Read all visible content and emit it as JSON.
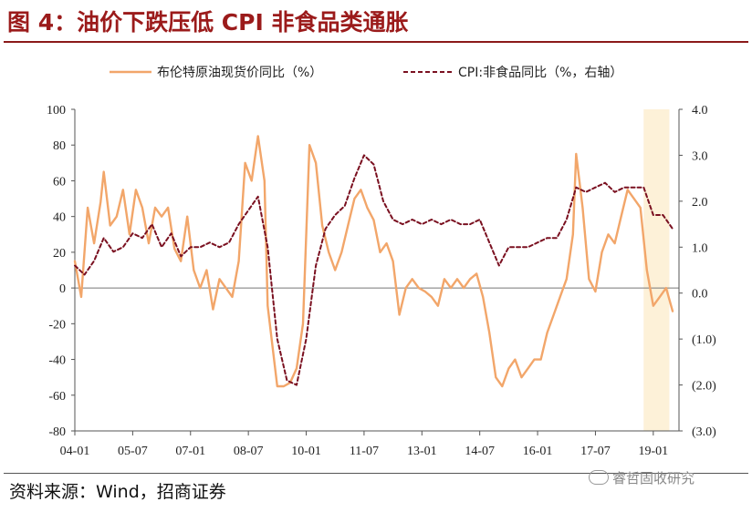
{
  "figure": {
    "title": "图 4：油价下跌压低 CPI 非食品类通胀",
    "source": "资料来源：Wind，招商证券",
    "watermark": "睿哲固收研究"
  },
  "colors": {
    "title": "#9b1b1b",
    "oil": "#f2a66a",
    "cpi": "#7a1020",
    "highlight": "#fdf1d8"
  },
  "chart_data": {
    "type": "line",
    "x_ticks": [
      "04-01",
      "05-07",
      "07-01",
      "08-07",
      "10-01",
      "11-07",
      "13-01",
      "14-07",
      "16-01",
      "17-07",
      "19-01"
    ],
    "y_left": {
      "min": -80,
      "max": 100,
      "step": 20,
      "ticks": [
        "100",
        "80",
        "60",
        "40",
        "20",
        "0",
        "-20",
        "-40",
        "-60",
        "-80"
      ]
    },
    "y_right": {
      "min": -3,
      "max": 4,
      "step": 1,
      "ticks": [
        "4.0",
        "3.0",
        "2.0",
        "1.0",
        "0.0",
        "(1.0)",
        "(2.0)",
        "(3.0)"
      ]
    },
    "highlight_range": [
      "2018-10",
      "2019-06"
    ],
    "legend_position": "top",
    "series": [
      {
        "name": "布伦特原油现货价同比（%）",
        "axis": "left",
        "style": "solid",
        "points": [
          [
            "2004-01",
            15
          ],
          [
            "2004-03",
            -5
          ],
          [
            "2004-05",
            45
          ],
          [
            "2004-07",
            25
          ],
          [
            "2004-09",
            48
          ],
          [
            "2004-10",
            65
          ],
          [
            "2004-12",
            35
          ],
          [
            "2005-02",
            40
          ],
          [
            "2005-04",
            55
          ],
          [
            "2005-06",
            30
          ],
          [
            "2005-08",
            55
          ],
          [
            "2005-10",
            45
          ],
          [
            "2005-12",
            25
          ],
          [
            "2006-02",
            45
          ],
          [
            "2006-04",
            40
          ],
          [
            "2006-06",
            45
          ],
          [
            "2006-08",
            22
          ],
          [
            "2006-10",
            15
          ],
          [
            "2006-12",
            40
          ],
          [
            "2007-02",
            10
          ],
          [
            "2007-04",
            0
          ],
          [
            "2007-06",
            10
          ],
          [
            "2007-08",
            -12
          ],
          [
            "2007-10",
            5
          ],
          [
            "2007-12",
            0
          ],
          [
            "2008-02",
            -5
          ],
          [
            "2008-04",
            15
          ],
          [
            "2008-06",
            70
          ],
          [
            "2008-08",
            60
          ],
          [
            "2008-10",
            85
          ],
          [
            "2008-12",
            60
          ],
          [
            "2009-01",
            -10
          ],
          [
            "2009-03",
            -40
          ],
          [
            "2009-04",
            -55
          ],
          [
            "2009-06",
            -55
          ],
          [
            "2009-08",
            -53
          ],
          [
            "2009-10",
            -45
          ],
          [
            "2009-12",
            -20
          ],
          [
            "2010-02",
            80
          ],
          [
            "2010-04",
            70
          ],
          [
            "2010-06",
            35
          ],
          [
            "2010-08",
            20
          ],
          [
            "2010-10",
            10
          ],
          [
            "2010-12",
            20
          ],
          [
            "2011-02",
            35
          ],
          [
            "2011-04",
            50
          ],
          [
            "2011-06",
            55
          ],
          [
            "2011-08",
            45
          ],
          [
            "2011-10",
            38
          ],
          [
            "2011-12",
            20
          ],
          [
            "2012-02",
            25
          ],
          [
            "2012-04",
            15
          ],
          [
            "2012-06",
            -15
          ],
          [
            "2012-08",
            0
          ],
          [
            "2012-10",
            5
          ],
          [
            "2012-12",
            0
          ],
          [
            "2013-02",
            -2
          ],
          [
            "2013-04",
            -5
          ],
          [
            "2013-06",
            -10
          ],
          [
            "2013-08",
            5
          ],
          [
            "2013-10",
            0
          ],
          [
            "2013-12",
            5
          ],
          [
            "2014-02",
            0
          ],
          [
            "2014-04",
            5
          ],
          [
            "2014-06",
            8
          ],
          [
            "2014-08",
            -5
          ],
          [
            "2014-10",
            -25
          ],
          [
            "2014-12",
            -50
          ],
          [
            "2015-02",
            -55
          ],
          [
            "2015-04",
            -45
          ],
          [
            "2015-06",
            -40
          ],
          [
            "2015-08",
            -50
          ],
          [
            "2015-10",
            -45
          ],
          [
            "2015-12",
            -40
          ],
          [
            "2016-02",
            -40
          ],
          [
            "2016-04",
            -25
          ],
          [
            "2016-06",
            -15
          ],
          [
            "2016-08",
            -5
          ],
          [
            "2016-10",
            5
          ],
          [
            "2016-12",
            30
          ],
          [
            "2017-01",
            75
          ],
          [
            "2017-03",
            45
          ],
          [
            "2017-05",
            5
          ],
          [
            "2017-07",
            -2
          ],
          [
            "2017-09",
            20
          ],
          [
            "2017-11",
            30
          ],
          [
            "2018-01",
            25
          ],
          [
            "2018-03",
            40
          ],
          [
            "2018-05",
            55
          ],
          [
            "2018-07",
            50
          ],
          [
            "2018-09",
            45
          ],
          [
            "2018-11",
            10
          ],
          [
            "2019-01",
            -10
          ],
          [
            "2019-03",
            -5
          ],
          [
            "2019-05",
            0
          ],
          [
            "2019-07",
            -13
          ]
        ]
      },
      {
        "name": "CPI:非食品同比（%，右轴）",
        "axis": "right",
        "style": "dashed",
        "points": [
          [
            "2004-01",
            0.6
          ],
          [
            "2004-04",
            0.4
          ],
          [
            "2004-07",
            0.7
          ],
          [
            "2004-10",
            1.2
          ],
          [
            "2005-01",
            0.9
          ],
          [
            "2005-04",
            1.0
          ],
          [
            "2005-07",
            1.3
          ],
          [
            "2005-10",
            1.2
          ],
          [
            "2006-01",
            1.5
          ],
          [
            "2006-04",
            1.0
          ],
          [
            "2006-07",
            1.3
          ],
          [
            "2006-10",
            0.8
          ],
          [
            "2007-01",
            1.0
          ],
          [
            "2007-04",
            1.0
          ],
          [
            "2007-07",
            1.1
          ],
          [
            "2007-10",
            1.0
          ],
          [
            "2008-01",
            1.1
          ],
          [
            "2008-04",
            1.5
          ],
          [
            "2008-07",
            1.8
          ],
          [
            "2008-10",
            2.1
          ],
          [
            "2009-01",
            1.0
          ],
          [
            "2009-04",
            -1.0
          ],
          [
            "2009-07",
            -1.9
          ],
          [
            "2009-10",
            -2.0
          ],
          [
            "2010-01",
            -1.0
          ],
          [
            "2010-04",
            0.6
          ],
          [
            "2010-07",
            1.4
          ],
          [
            "2010-10",
            1.7
          ],
          [
            "2011-01",
            1.9
          ],
          [
            "2011-04",
            2.5
          ],
          [
            "2011-07",
            3.0
          ],
          [
            "2011-10",
            2.8
          ],
          [
            "2012-01",
            2.0
          ],
          [
            "2012-04",
            1.6
          ],
          [
            "2012-07",
            1.5
          ],
          [
            "2012-10",
            1.6
          ],
          [
            "2013-01",
            1.5
          ],
          [
            "2013-04",
            1.6
          ],
          [
            "2013-07",
            1.5
          ],
          [
            "2013-10",
            1.6
          ],
          [
            "2014-01",
            1.5
          ],
          [
            "2014-04",
            1.5
          ],
          [
            "2014-07",
            1.6
          ],
          [
            "2014-10",
            1.1
          ],
          [
            "2015-01",
            0.6
          ],
          [
            "2015-04",
            1.0
          ],
          [
            "2015-07",
            1.0
          ],
          [
            "2015-10",
            1.0
          ],
          [
            "2016-01",
            1.1
          ],
          [
            "2016-04",
            1.2
          ],
          [
            "2016-07",
            1.2
          ],
          [
            "2016-10",
            1.6
          ],
          [
            "2017-01",
            2.3
          ],
          [
            "2017-04",
            2.2
          ],
          [
            "2017-07",
            2.3
          ],
          [
            "2017-10",
            2.4
          ],
          [
            "2018-01",
            2.2
          ],
          [
            "2018-04",
            2.3
          ],
          [
            "2018-07",
            2.3
          ],
          [
            "2018-10",
            2.3
          ],
          [
            "2019-01",
            1.7
          ],
          [
            "2019-04",
            1.7
          ],
          [
            "2019-07",
            1.4
          ]
        ]
      }
    ]
  }
}
